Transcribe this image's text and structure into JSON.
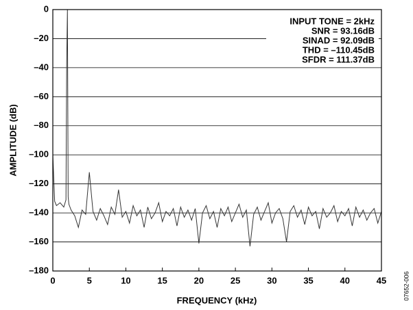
{
  "chart_data": {
    "type": "line",
    "x_label": "FREQUENCY (kHz)",
    "y_label": "AMPLITUDE (dB)",
    "annotations": [
      "INPUT TONE = 2kHz",
      "SNR = 93.16dB",
      "SINAD = 92.09dB",
      "THD = –110.45dB",
      "SFDR = 111.37dB"
    ],
    "figure_id": "07652-006",
    "x": [
      0,
      0.25,
      0.5,
      1,
      1.5,
      1.8,
      1.9,
      2,
      2.1,
      2.2,
      2.5,
      3,
      3.5,
      4,
      4.5,
      5,
      5.5,
      6,
      6.5,
      7,
      7.5,
      8,
      8.5,
      9,
      9.5,
      10,
      10.5,
      11,
      11.5,
      12,
      12.5,
      13,
      13.5,
      14,
      14.5,
      15,
      15.5,
      16,
      16.5,
      17,
      17.5,
      18,
      18.5,
      19,
      19.5,
      20,
      20.5,
      21,
      21.5,
      22,
      22.5,
      23,
      23.5,
      24,
      24.5,
      25,
      25.5,
      26,
      26.5,
      27,
      27.5,
      28,
      28.5,
      29,
      29.5,
      30,
      30.5,
      31,
      31.5,
      32,
      32.5,
      33,
      33.5,
      34,
      34.5,
      35,
      35.5,
      36,
      36.5,
      37,
      37.5,
      38,
      38.5,
      39,
      39.5,
      40,
      40.5,
      41,
      41.5,
      42,
      42.5,
      43,
      43.5,
      44,
      44.5,
      45
    ],
    "series": [
      {
        "color": "#333333",
        "values": [
          -100,
          -132,
          -135,
          -133,
          -136,
          -131,
          -36,
          0,
          -129,
          -134,
          -138,
          -142,
          -150,
          -138,
          -141,
          -112,
          -139,
          -145,
          -137,
          -142,
          -148,
          -136,
          -141,
          -124,
          -143,
          -139,
          -147,
          -135,
          -142,
          -138,
          -150,
          -136,
          -144,
          -140,
          -133,
          -146,
          -139,
          -142,
          -137,
          -149,
          -136,
          -143,
          -138,
          -145,
          -137,
          -161,
          -140,
          -135,
          -144,
          -139,
          -150,
          -137,
          -142,
          -136,
          -146,
          -140,
          -134,
          -143,
          -138,
          -163,
          -141,
          -136,
          -145,
          -139,
          -133,
          -147,
          -140,
          -137,
          -144,
          -160,
          -139,
          -135,
          -143,
          -138,
          -148,
          -136,
          -142,
          -139,
          -151,
          -137,
          -143,
          -140,
          -135,
          -146,
          -139,
          -142,
          -137,
          -149,
          -136,
          -143,
          -138,
          -145,
          -140,
          -137,
          -147,
          -139
        ]
      }
    ],
    "xlim": [
      0,
      45
    ],
    "xticks": [
      0,
      5,
      10,
      15,
      20,
      25,
      30,
      35,
      40,
      45
    ],
    "ylim": [
      -180,
      0
    ],
    "yticks": [
      0,
      {
        "value": -20,
        "label": "–20"
      },
      {
        "value": -40,
        "label": "–40"
      },
      {
        "value": -60,
        "label": "–60"
      },
      {
        "value": -80,
        "label": "–80"
      },
      {
        "value": -100,
        "label": "–100"
      },
      {
        "value": -120,
        "label": "–120"
      },
      {
        "value": -140,
        "label": "–140"
      },
      {
        "value": -160,
        "label": "–160"
      },
      {
        "value": -180,
        "label": "–180"
      }
    ],
    "grid": true
  }
}
